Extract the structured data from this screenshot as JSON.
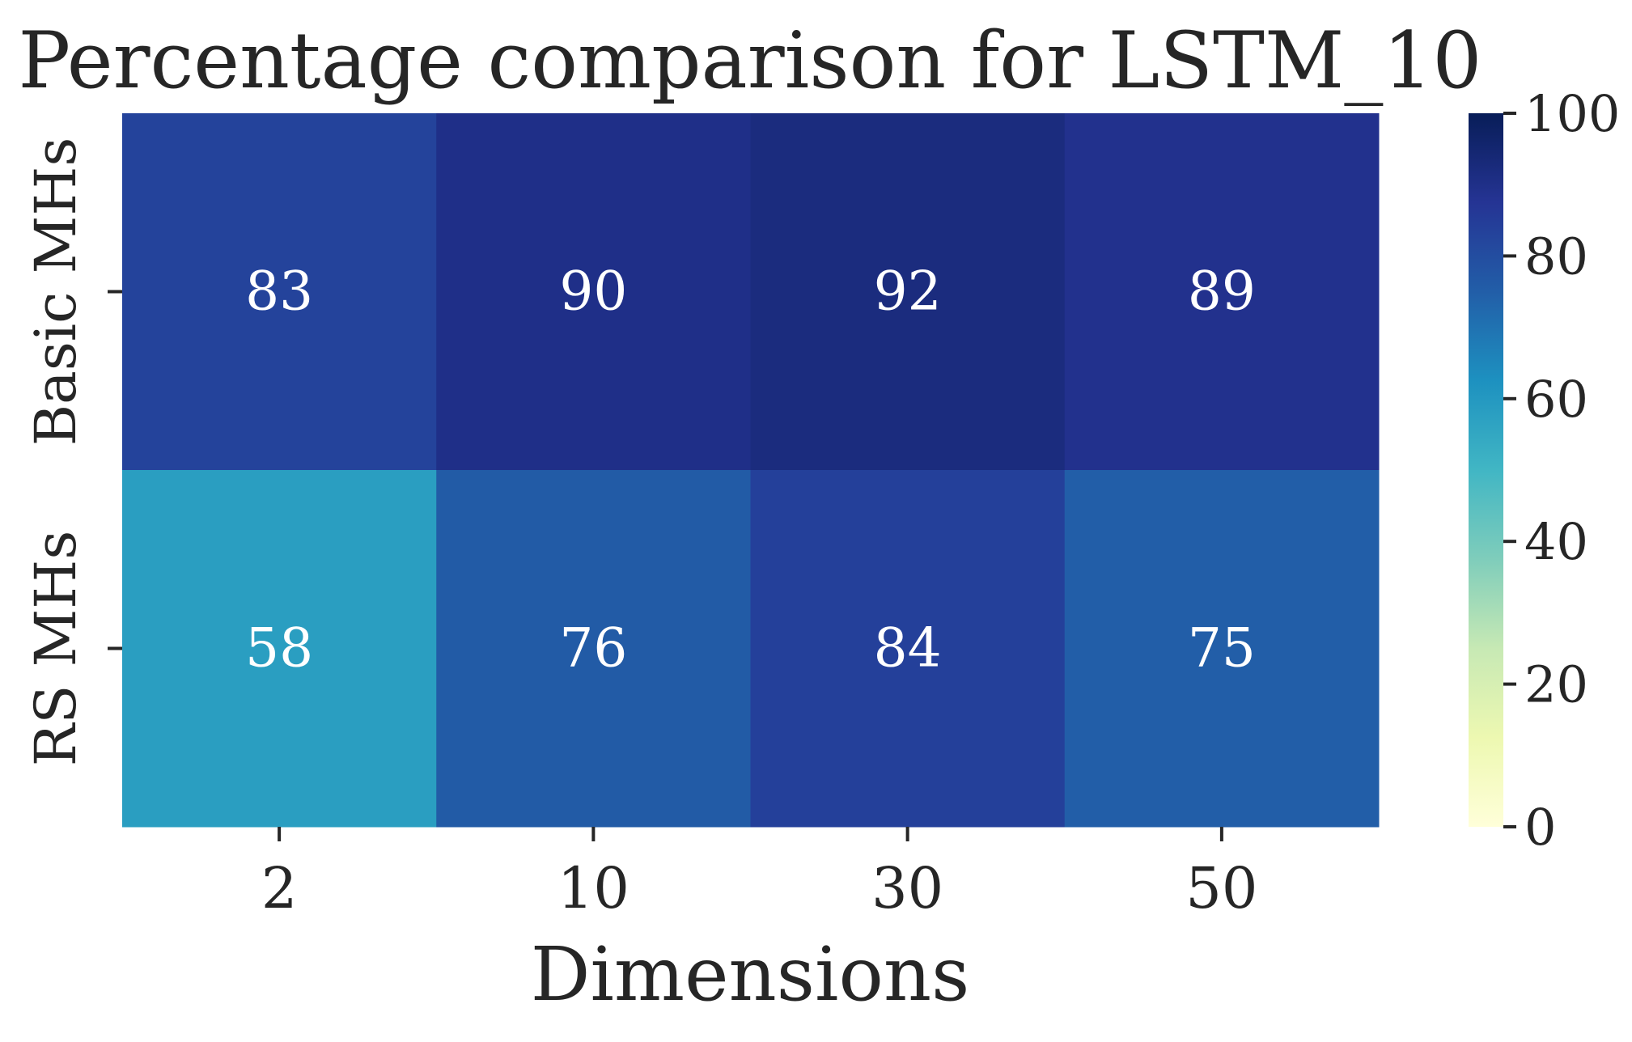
{
  "chart_data": {
    "type": "heatmap",
    "title": "Percentage comparison for LSTM_10",
    "xlabel": "Dimensions",
    "ylabel": "",
    "x_categories": [
      "2",
      "10",
      "30",
      "50"
    ],
    "y_categories": [
      "Basic MHs",
      "RS MHs"
    ],
    "values": [
      [
        83,
        90,
        92,
        89
      ],
      [
        58,
        76,
        84,
        75
      ]
    ],
    "colormap": "YlGnBu",
    "colorbar": {
      "range": [
        0,
        100
      ],
      "ticks": [
        "0",
        "20",
        "40",
        "60",
        "80",
        "100"
      ]
    },
    "annotations": true,
    "annotation_color": "#ffffff",
    "grid": false
  }
}
